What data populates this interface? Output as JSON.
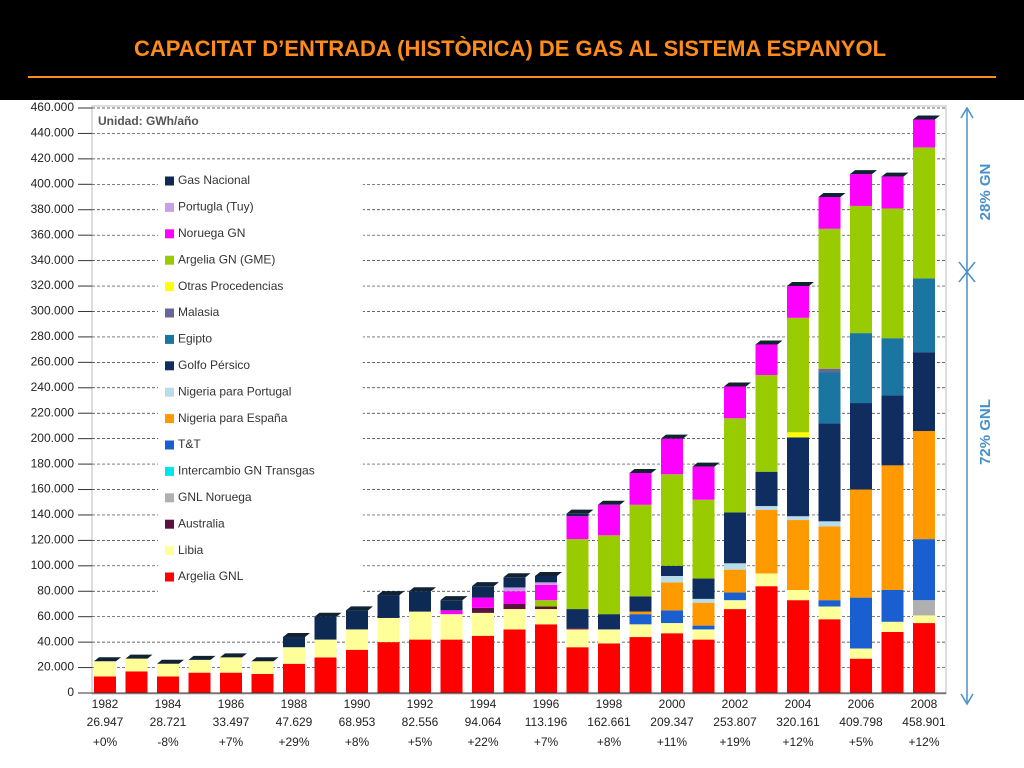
{
  "chart_data": {
    "type": "stacked_bar",
    "title": "CAPACITAT D’ENTRADA (HISTÒRICA) DE GAS AL SISTEMA ESPANYOL",
    "unit_label": "Unidad: GWh/año",
    "categories": [
      "1982",
      null,
      "1984",
      null,
      "1986",
      null,
      "1988",
      null,
      "1990",
      null,
      "1992",
      null,
      "1994",
      null,
      "1996",
      null,
      "1998",
      null,
      "2000",
      null,
      "2002",
      null,
      "2004",
      null,
      "2006",
      null,
      "2008"
    ],
    "totals": [
      "26.947",
      "28.721",
      "33.497",
      "47.629",
      "68.953",
      "82.556",
      "94.064",
      "113.196",
      "162.661",
      "209.347",
      "253.807",
      "320.161",
      "409.798",
      "458.901"
    ],
    "growth": [
      "+0%",
      "-8%",
      "+7%",
      "+29%",
      "+8%",
      "+5%",
      "+22%",
      "+7%",
      "+8%",
      "+11%",
      "+19%",
      "+12%",
      "+5%",
      "+12%"
    ],
    "annotations": [
      "28% GN",
      "72% GNL"
    ],
    "ylim": [
      0,
      460000
    ],
    "yticks": [
      0,
      {
        "value": 20000,
        "label": "20.000"
      },
      {
        "value": 40000,
        "label": "40.000"
      },
      {
        "value": 60000,
        "label": "60.000"
      },
      {
        "value": 80000,
        "label": "80.000"
      },
      {
        "value": 100000,
        "label": "100.000"
      },
      {
        "value": 120000,
        "label": "120.000"
      },
      {
        "value": 140000,
        "label": "140.000"
      },
      {
        "value": 160000,
        "label": "160.000"
      },
      {
        "value": 180000,
        "label": "180.000"
      },
      {
        "value": 200000,
        "label": "200.000"
      },
      {
        "value": 220000,
        "label": "220.000"
      },
      {
        "value": 240000,
        "label": "240.000"
      },
      {
        "value": 260000,
        "label": "260.000"
      },
      {
        "value": 280000,
        "label": "280.000"
      },
      {
        "value": 300000,
        "label": "300.000"
      },
      {
        "value": 320000,
        "label": "320.000"
      },
      {
        "value": 340000,
        "label": "340.000"
      },
      {
        "value": 360000,
        "label": "360.000"
      },
      {
        "value": 380000,
        "label": "380.000"
      },
      {
        "value": 400000,
        "label": "400.000"
      },
      {
        "value": 420000,
        "label": "420.000"
      },
      {
        "value": 440000,
        "label": "440.000"
      },
      {
        "value": 460000,
        "label": "460.000"
      }
    ],
    "grid": true,
    "series": [
      {
        "name": "Gas Nacional",
        "color": "#0d2a55",
        "values": [
          0,
          0,
          0,
          0,
          0,
          0,
          8000,
          18000,
          15000,
          18000,
          16000,
          8000,
          9000,
          8000,
          5000,
          2000,
          0,
          0,
          0,
          0,
          0,
          0,
          0,
          0,
          0,
          0,
          0
        ]
      },
      {
        "name": "Portugla (Tuy)",
        "color": "#c9a0e8",
        "values": [
          0,
          0,
          0,
          0,
          0,
          0,
          0,
          0,
          0,
          0,
          0,
          0,
          0,
          3000,
          2000,
          0,
          0,
          0,
          0,
          0,
          0,
          0,
          0,
          0,
          0,
          0,
          0
        ]
      },
      {
        "name": "Noruega GN",
        "color": "#ff00ff",
        "values": [
          0,
          0,
          0,
          0,
          0,
          0,
          0,
          0,
          0,
          0,
          0,
          3000,
          8000,
          10000,
          12000,
          18000,
          24000,
          25000,
          28000,
          26000,
          25000,
          24000,
          25000,
          25000,
          25000,
          25000,
          22000
        ]
      },
      {
        "name": "Argelia GN (GME)",
        "color": "#99cc00",
        "values": [
          0,
          0,
          0,
          0,
          0,
          0,
          0,
          0,
          0,
          0,
          0,
          0,
          0,
          0,
          5000,
          55000,
          62000,
          72000,
          72000,
          62000,
          74000,
          76000,
          90000,
          110000,
          100000,
          102000,
          103000
        ]
      },
      {
        "name": "Otras Procedencias",
        "color": "#ffff00",
        "values": [
          0,
          0,
          0,
          0,
          0,
          0,
          0,
          0,
          0,
          0,
          0,
          0,
          0,
          0,
          0,
          0,
          0,
          0,
          0,
          0,
          0,
          0,
          4000,
          0,
          0,
          0,
          0
        ]
      },
      {
        "name": "Malasia",
        "color": "#666699",
        "values": [
          0,
          0,
          0,
          0,
          0,
          0,
          0,
          0,
          0,
          0,
          0,
          0,
          0,
          0,
          0,
          0,
          0,
          0,
          0,
          0,
          0,
          0,
          0,
          3000,
          0,
          0,
          0
        ]
      },
      {
        "name": "Egipto",
        "color": "#1a75a0",
        "values": [
          0,
          0,
          0,
          0,
          0,
          0,
          0,
          0,
          0,
          0,
          0,
          0,
          0,
          0,
          0,
          0,
          0,
          0,
          0,
          0,
          0,
          0,
          0,
          40000,
          55000,
          45000,
          58000
        ]
      },
      {
        "name": "Golfo Pérsico",
        "color": "#0f2d5e",
        "values": [
          0,
          0,
          0,
          0,
          0,
          0,
          0,
          0,
          0,
          0,
          0,
          0,
          0,
          0,
          0,
          15000,
          12000,
          12000,
          8000,
          16000,
          40000,
          27000,
          62000,
          77000,
          68000,
          55000,
          62000
        ]
      },
      {
        "name": "Nigeria para Portugal",
        "color": "#b8dcea",
        "values": [
          0,
          0,
          0,
          0,
          0,
          0,
          0,
          0,
          0,
          0,
          0,
          0,
          0,
          0,
          0,
          0,
          0,
          0,
          5000,
          3000,
          5000,
          3000,
          3000,
          4000,
          0,
          0,
          0
        ]
      },
      {
        "name": "Nigeria para España",
        "color": "#ff9900",
        "values": [
          0,
          0,
          0,
          0,
          0,
          0,
          0,
          0,
          0,
          0,
          0,
          0,
          0,
          0,
          0,
          0,
          0,
          2000,
          22000,
          18000,
          18000,
          50000,
          55000,
          58000,
          85000,
          98000,
          85000
        ]
      },
      {
        "name": "T&T",
        "color": "#1a5fd0",
        "values": [
          0,
          0,
          0,
          0,
          0,
          0,
          0,
          0,
          0,
          0,
          0,
          0,
          0,
          0,
          0,
          0,
          0,
          8000,
          10000,
          3000,
          6000,
          0,
          0,
          5000,
          40000,
          25000,
          48000
        ]
      },
      {
        "name": "Intercambio GN Transgas",
        "color": "#00e5e5",
        "values": [
          0,
          0,
          0,
          0,
          0,
          0,
          0,
          0,
          0,
          0,
          0,
          0,
          0,
          0,
          0,
          0,
          0,
          0,
          0,
          0,
          0,
          0,
          0,
          0,
          0,
          0,
          0
        ]
      },
      {
        "name": "GNL Noruega",
        "color": "#b0b0b0",
        "values": [
          0,
          0,
          0,
          0,
          0,
          0,
          0,
          0,
          0,
          0,
          0,
          0,
          0,
          0,
          0,
          0,
          0,
          0,
          0,
          0,
          0,
          0,
          0,
          0,
          0,
          0,
          12000
        ]
      },
      {
        "name": "Australia",
        "color": "#5a1040",
        "values": [
          0,
          0,
          0,
          0,
          0,
          0,
          0,
          0,
          0,
          0,
          0,
          0,
          4000,
          4000,
          2000,
          1000,
          0,
          0,
          0,
          0,
          0,
          0,
          0,
          0,
          0,
          0,
          0
        ]
      },
      {
        "name": "Libia",
        "color": "#ffff99",
        "values": [
          12000,
          10000,
          10000,
          10000,
          12000,
          10000,
          13000,
          14000,
          16000,
          19000,
          22000,
          20000,
          18000,
          16000,
          12000,
          14000,
          11000,
          10000,
          8000,
          8000,
          7000,
          10000,
          8000,
          10000,
          8000,
          8000,
          6000
        ]
      },
      {
        "name": "Argelia GNL",
        "color": "#ff0000",
        "values": [
          13000,
          17000,
          13000,
          16000,
          16000,
          15000,
          23000,
          28000,
          34000,
          40000,
          42000,
          42000,
          45000,
          50000,
          54000,
          36000,
          39000,
          44000,
          47000,
          42000,
          66000,
          84000,
          73000,
          58000,
          27000,
          48000,
          55000
        ]
      }
    ]
  }
}
